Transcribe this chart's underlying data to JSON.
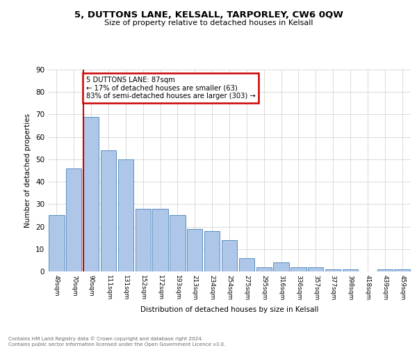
{
  "title1": "5, DUTTONS LANE, KELSALL, TARPORLEY, CW6 0QW",
  "title2": "Size of property relative to detached houses in Kelsall",
  "xlabel": "Distribution of detached houses by size in Kelsall",
  "ylabel": "Number of detached properties",
  "categories": [
    "49sqm",
    "70sqm",
    "90sqm",
    "111sqm",
    "131sqm",
    "152sqm",
    "172sqm",
    "193sqm",
    "213sqm",
    "234sqm",
    "254sqm",
    "275sqm",
    "295sqm",
    "316sqm",
    "336sqm",
    "357sqm",
    "377sqm",
    "398sqm",
    "418sqm",
    "439sqm",
    "459sqm"
  ],
  "values": [
    25,
    46,
    69,
    54,
    50,
    28,
    28,
    25,
    19,
    18,
    14,
    6,
    2,
    4,
    2,
    2,
    1,
    1,
    0,
    1,
    1
  ],
  "bar_color": "#aec6e8",
  "bar_edge_color": "#5a8fc0",
  "vline_index": 2,
  "vline_color": "#cc0000",
  "annotation_text": "5 DUTTONS LANE: 87sqm\n← 17% of detached houses are smaller (63)\n83% of semi-detached houses are larger (303) →",
  "annotation_box_color": "#cc0000",
  "ylim": [
    0,
    90
  ],
  "yticks": [
    0,
    10,
    20,
    30,
    40,
    50,
    60,
    70,
    80,
    90
  ],
  "footer_text": "Contains HM Land Registry data © Crown copyright and database right 2024.\nContains public sector information licensed under the Open Government Licence v3.0.",
  "bg_color": "#ffffff",
  "grid_color": "#cccccc"
}
